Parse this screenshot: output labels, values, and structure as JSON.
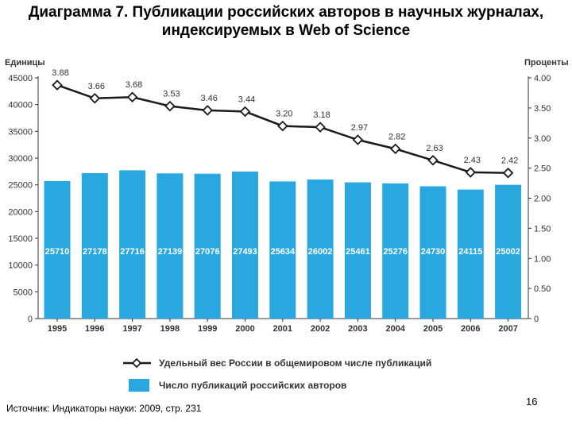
{
  "title": {
    "line1": "Диаграмма 7. Публикации российских авторов в научных журналах,",
    "line2": "индексируемых в Web of Science"
  },
  "source": "Источник: Индикаторы науки: 2009, стр. 231",
  "page_number": "16",
  "colors": {
    "bar": "#29a8e0",
    "bar_label": "#ffffff",
    "line": "#1a1a1a",
    "marker_fill": "#ffffff",
    "axis": "#333333"
  },
  "chart_data": {
    "type": "bar",
    "categories": [
      "1995",
      "1996",
      "1997",
      "1998",
      "1999",
      "2000",
      "2001",
      "2002",
      "2003",
      "2004",
      "2005",
      "2006",
      "2007"
    ],
    "series": [
      {
        "name": "Число публикаций российских авторов",
        "type": "bar",
        "axis": "left",
        "values": [
          25710,
          27178,
          27716,
          27139,
          27076,
          27493,
          25634,
          26002,
          25461,
          25276,
          24730,
          24115,
          25002
        ]
      },
      {
        "name": "Удельный вес России в общемировом числе публикаций",
        "type": "line",
        "axis": "right",
        "values": [
          3.88,
          3.66,
          3.68,
          3.53,
          3.46,
          3.44,
          3.2,
          3.18,
          2.97,
          2.82,
          2.63,
          2.43,
          2.42
        ]
      }
    ],
    "ylabel_left": "Единицы",
    "ylabel_right": "Проценты",
    "ylim_left": [
      0,
      45000
    ],
    "ylim_right": [
      0,
      4.0
    ],
    "yticks_left": [
      "0",
      "5000",
      "10000",
      "15000",
      "20000",
      "25000",
      "30000",
      "35000",
      "40000",
      "45000"
    ],
    "yticks_right": [
      "0",
      "0.50",
      "1.00",
      "1.50",
      "2.00",
      "2.50",
      "3.00",
      "3.50",
      "4.00"
    ],
    "legend_position": "bottom",
    "grid": false
  }
}
